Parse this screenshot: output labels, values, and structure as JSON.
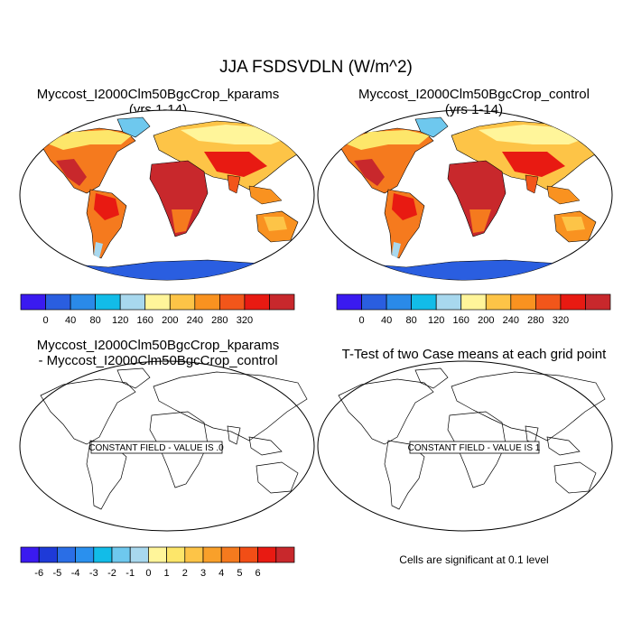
{
  "figure": {
    "title": "JJA FSDSVDLN (W/m^2)"
  },
  "panels": {
    "top_left": {
      "title_line1": "Myccost_I2000Clm50BgcCrop_kparams",
      "title_line2": "(yrs 1-14)"
    },
    "top_right": {
      "title_line1": "Myccost_I2000Clm50BgcCrop_control",
      "title_line2": "(yrs 1-14)"
    },
    "bottom_left": {
      "title_line1": "Myccost_I2000Clm50BgcCrop_kparams",
      "title_line2": "- Myccost_I2000Clm50BgcCrop_control",
      "field_label": "CONSTANT FIELD - VALUE IS .0"
    },
    "bottom_right": {
      "title_line1": "T-Test of two Case means at each grid point",
      "field_label": "CONSTANT FIELD - VALUE IS 1",
      "note": "Cells are significant at 0.1 level"
    }
  },
  "colorbar_main": {
    "colors": [
      "#3a1af0",
      "#2a5ee0",
      "#2a8ae8",
      "#12bce8",
      "#a8d8ee",
      "#fff59a",
      "#fdc447",
      "#f99220",
      "#f2561a",
      "#e81a12",
      "#c8282c"
    ],
    "labels": [
      "0",
      "40",
      "80",
      "120",
      "160",
      "200",
      "240",
      "280",
      "320"
    ]
  },
  "colorbar_diff": {
    "colors": [
      "#3a1af0",
      "#1e3ad8",
      "#2a6ee6",
      "#2a90ee",
      "#12bce8",
      "#6ec8ee",
      "#a8d8ee",
      "#fff59a",
      "#fde66a",
      "#fdc447",
      "#f9a02a",
      "#f57a1e",
      "#f24e16",
      "#e81a12",
      "#c8282c"
    ],
    "labels": [
      "-6",
      "-5",
      "-4",
      "-3",
      "-2",
      "-1",
      "0",
      "1",
      "2",
      "3",
      "4",
      "5",
      "6"
    ]
  },
  "chart_data": {
    "type": "heatmap",
    "title": "JJA FSDSVDLN (W/m^2)",
    "projection": "robinson",
    "panels": [
      {
        "name": "Myccost_I2000Clm50BgcCrop_kparams (yrs 1-14)",
        "range": [
          0,
          320
        ],
        "levels": [
          0,
          40,
          80,
          120,
          160,
          200,
          240,
          280,
          320
        ]
      },
      {
        "name": "Myccost_I2000Clm50BgcCrop_control (yrs 1-14)",
        "range": [
          0,
          320
        ],
        "levels": [
          0,
          40,
          80,
          120,
          160,
          200,
          240,
          280,
          320
        ]
      },
      {
        "name": "Myccost_I2000Clm50BgcCrop_kparams - Myccost_I2000Clm50BgcCrop_control",
        "constant_value": 0,
        "levels": [
          -6,
          -5,
          -4,
          -3,
          -2,
          -1,
          0,
          1,
          2,
          3,
          4,
          5,
          6
        ]
      },
      {
        "name": "T-Test of two Case means at each grid point",
        "constant_value": 1
      }
    ]
  }
}
